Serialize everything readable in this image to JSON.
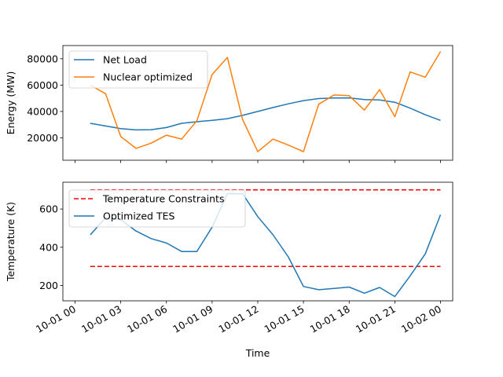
{
  "chart_data": [
    {
      "type": "line",
      "xlabel": "",
      "ylabel": "Energy (MW)",
      "ylim": [
        3000,
        90000
      ],
      "yticks": [
        20000,
        40000,
        60000,
        80000
      ],
      "ytick_labels": [
        "20000",
        "40000",
        "60000",
        "80000"
      ],
      "legend_position": "upper-left",
      "grid": false,
      "series": [
        {
          "name": "Net Load",
          "color": "#1f77b4",
          "x": [
            1,
            2,
            3,
            4,
            5,
            6,
            7,
            8,
            9,
            10,
            11,
            12,
            13,
            14,
            15,
            16,
            17,
            18,
            19,
            20,
            21,
            22,
            23,
            24
          ],
          "values": [
            31000,
            29000,
            27000,
            26000,
            26200,
            27800,
            31000,
            32200,
            33300,
            34500,
            37000,
            40000,
            43000,
            45800,
            48200,
            49800,
            50200,
            50300,
            49000,
            48700,
            47000,
            42500,
            37500,
            33200
          ]
        },
        {
          "name": "Nuclear optimized",
          "color": "#ff7f0e",
          "x": [
            1,
            2,
            3,
            4,
            5,
            6,
            7,
            8,
            9,
            10,
            11,
            12,
            13,
            14,
            15,
            16,
            17,
            18,
            19,
            20,
            21,
            22,
            23,
            24
          ],
          "values": [
            60000,
            53500,
            21000,
            12000,
            16000,
            22000,
            19000,
            33000,
            68000,
            81000,
            34000,
            9500,
            19000,
            14500,
            9500,
            45500,
            52500,
            52000,
            41000,
            56500,
            36000,
            70000,
            66000,
            85500
          ]
        }
      ]
    },
    {
      "type": "line",
      "xlabel": "Time",
      "ylabel": "Temperature (K)",
      "ylim": [
        120,
        740
      ],
      "yticks": [
        200,
        400,
        600
      ],
      "ytick_labels": [
        "200",
        "400",
        "600"
      ],
      "xlim": [
        -0.8,
        24.8
      ],
      "xticks": [
        0,
        3,
        6,
        9,
        12,
        15,
        18,
        21,
        24
      ],
      "xtick_labels": [
        "10-01 00",
        "10-01 03",
        "10-01 06",
        "10-01 09",
        "10-01 12",
        "10-01 15",
        "10-01 18",
        "10-01 21",
        "10-02 00"
      ],
      "legend_position": "upper-left",
      "grid": false,
      "series": [
        {
          "name": "Temperature Constraints",
          "color": "#ff0000",
          "dashed": true,
          "segments": [
            {
              "x": [
                1,
                24
              ],
              "values": [
                700,
                700
              ]
            },
            {
              "x": [
                1,
                24
              ],
              "values": [
                300,
                300
              ]
            }
          ]
        },
        {
          "name": "Optimized TES",
          "color": "#1f77b4",
          "x": [
            1,
            2,
            3,
            4,
            5,
            6,
            7,
            8,
            9,
            10,
            11,
            12,
            13,
            14,
            15,
            16,
            17,
            18,
            19,
            20,
            21,
            22,
            23,
            24
          ],
          "values": [
            465,
            555,
            545,
            485,
            445,
            422,
            378,
            378,
            505,
            680,
            680,
            560,
            465,
            350,
            195,
            178,
            185,
            192,
            160,
            190,
            142,
            250,
            365,
            570
          ]
        }
      ]
    }
  ]
}
